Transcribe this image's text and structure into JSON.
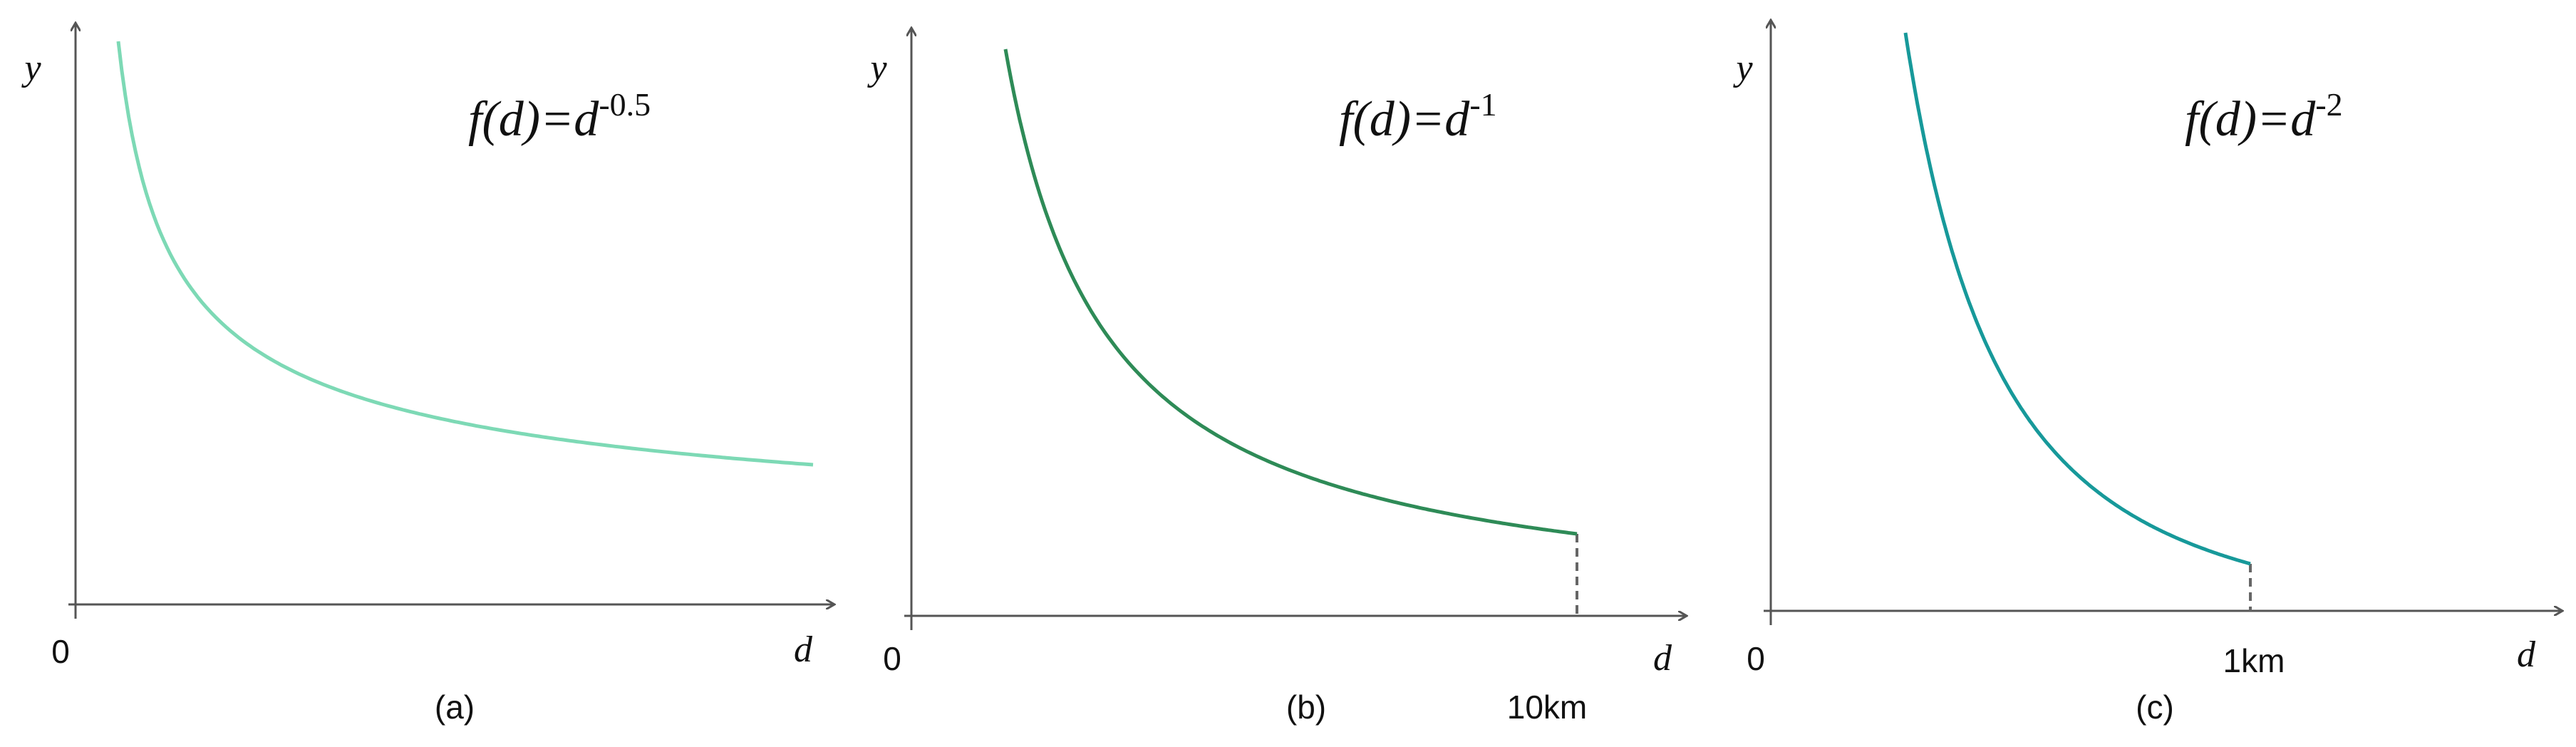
{
  "panels": [
    {
      "label": "(a)",
      "formula": "f(d)=d",
      "exponent": "-0.5",
      "origin": "0",
      "y_axis": "y",
      "x_axis": "d"
    },
    {
      "label": "(b)",
      "formula": "f(d)=d",
      "exponent": "-1",
      "origin": "0",
      "y_axis": "y",
      "x_axis": "d",
      "distance": "10km"
    },
    {
      "label": "(c)",
      "formula": "f(d)=d",
      "exponent": "-2",
      "origin": "0",
      "y_axis": "y",
      "x_axis": "d",
      "distance": "1km"
    }
  ]
}
